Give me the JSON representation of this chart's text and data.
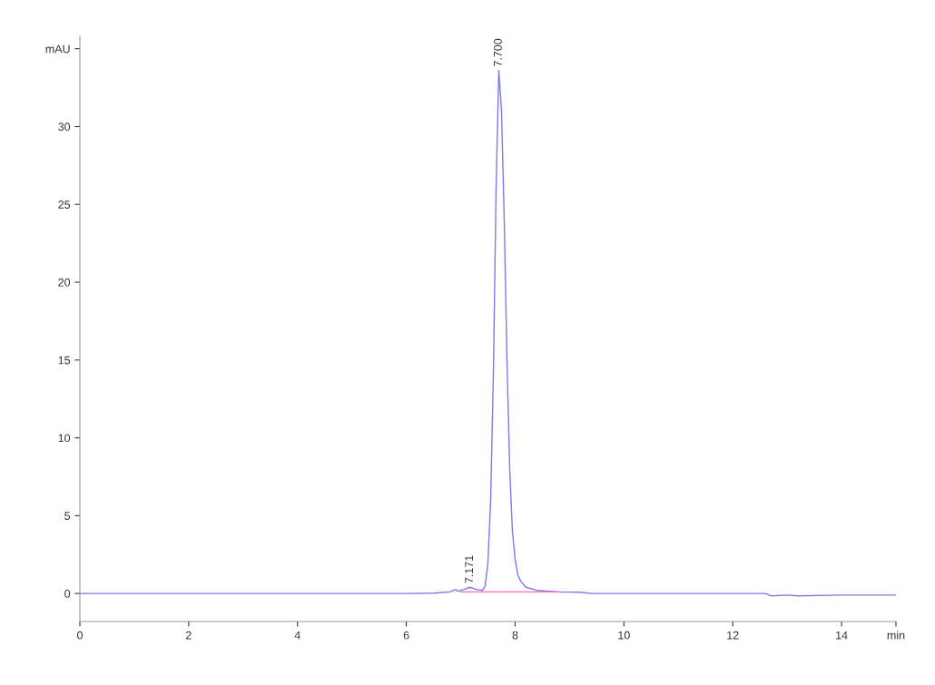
{
  "chart_data": {
    "type": "line",
    "xlim": [
      0,
      15
    ],
    "ylim": [
      -1.8,
      35.8
    ],
    "xticks": [
      0,
      2,
      4,
      6,
      8,
      10,
      12,
      14,
      {
        "value": 15,
        "label": "min"
      }
    ],
    "yticks": [
      0,
      5,
      10,
      15,
      20,
      25,
      30,
      {
        "value": 35,
        "label": "mAU"
      }
    ],
    "grid": false,
    "legend": false,
    "marker": "none",
    "line_style": "solid",
    "series": [
      {
        "color": "#7b7be6",
        "x": [
          0,
          3,
          6,
          6.5,
          6.8,
          6.9,
          6.95,
          7.05,
          7.17,
          7.3,
          7.4,
          7.45,
          7.5,
          7.55,
          7.6,
          7.65,
          7.7,
          7.75,
          7.8,
          7.85,
          7.9,
          7.95,
          8.0,
          8.05,
          8.1,
          8.2,
          8.4,
          8.8,
          9.2,
          9.4,
          12.6,
          12.7,
          13.0,
          13.2,
          14.0,
          15
        ],
        "values": [
          0,
          0,
          0,
          0.02,
          0.1,
          0.25,
          0.15,
          0.25,
          0.4,
          0.25,
          0.2,
          0.5,
          2,
          6,
          14,
          26,
          33.6,
          31,
          24,
          15,
          8,
          4,
          2.2,
          1.2,
          0.8,
          0.4,
          0.2,
          0.1,
          0.08,
          0,
          0,
          -0.15,
          -0.1,
          -0.15,
          -0.1,
          -0.1
        ]
      },
      {
        "color": "#ff66cc",
        "x": [
          7.0,
          8.8
        ],
        "values": [
          0.1,
          0.1
        ]
      }
    ],
    "annotations": [
      {
        "text": "7.700",
        "x": 7.7,
        "y": 33.6
      },
      {
        "text": "7.171",
        "x": 7.17,
        "y": 0.4
      }
    ]
  }
}
